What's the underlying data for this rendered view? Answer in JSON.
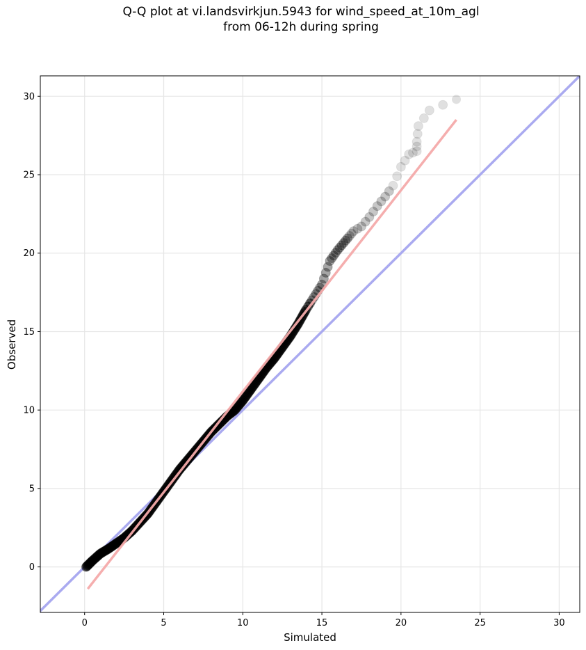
{
  "chart_data": {
    "type": "scatter",
    "title_line1": "Q-Q plot at vi.landsvirkjun.5943 for wind_speed_at_10m_agl",
    "title_line2": "from 06-12h during spring",
    "xlabel": "Simulated",
    "ylabel": "Observed",
    "xlim": [
      -2.8,
      31.3
    ],
    "ylim": [
      -2.9,
      31.3
    ],
    "xticks": [
      0,
      5,
      10,
      15,
      20,
      25,
      30
    ],
    "yticks": [
      0,
      5,
      10,
      15,
      20,
      25,
      30
    ],
    "grid": true,
    "identity_line_color": "#aaaaf0",
    "fit_line": {
      "color": "#f4aaaa",
      "x": [
        0.2,
        23.5
      ],
      "y": [
        -1.4,
        28.5
      ]
    },
    "marker_color": "#000000",
    "quantile_curve": [
      [
        0.1,
        0.0
      ],
      [
        0.5,
        0.4
      ],
      [
        1.0,
        0.85
      ],
      [
        1.5,
        1.15
      ],
      [
        2.0,
        1.5
      ],
      [
        2.5,
        1.85
      ],
      [
        3.0,
        2.3
      ],
      [
        3.5,
        2.85
      ],
      [
        4.0,
        3.4
      ],
      [
        4.5,
        4.1
      ],
      [
        5.0,
        4.8
      ],
      [
        5.5,
        5.5
      ],
      [
        6.0,
        6.2
      ],
      [
        6.5,
        6.8
      ],
      [
        7.0,
        7.4
      ],
      [
        7.5,
        8.0
      ],
      [
        8.0,
        8.6
      ],
      [
        8.5,
        9.1
      ],
      [
        9.0,
        9.6
      ],
      [
        9.5,
        10.0
      ],
      [
        10.0,
        10.6
      ],
      [
        10.5,
        11.3
      ],
      [
        11.0,
        12.0
      ],
      [
        11.5,
        12.7
      ],
      [
        12.0,
        13.3
      ],
      [
        12.5,
        14.0
      ],
      [
        13.0,
        14.7
      ],
      [
        13.5,
        15.5
      ],
      [
        14.0,
        16.4
      ],
      [
        14.5,
        17.2
      ],
      [
        15.0,
        18.0
      ],
      [
        15.5,
        19.5
      ],
      [
        16.0,
        20.2
      ],
      [
        16.5,
        20.8
      ],
      [
        17.0,
        21.4
      ],
      [
        17.5,
        21.7
      ],
      [
        18.0,
        22.3
      ],
      [
        18.5,
        23.0
      ],
      [
        19.0,
        23.6
      ],
      [
        19.5,
        24.3
      ],
      [
        20.0,
        25.5
      ],
      [
        20.5,
        26.3
      ],
      [
        21.0,
        26.5
      ],
      [
        21.0,
        27.1
      ],
      [
        21.1,
        28.1
      ],
      [
        21.8,
        29.1
      ],
      [
        23.5,
        29.8
      ]
    ]
  }
}
